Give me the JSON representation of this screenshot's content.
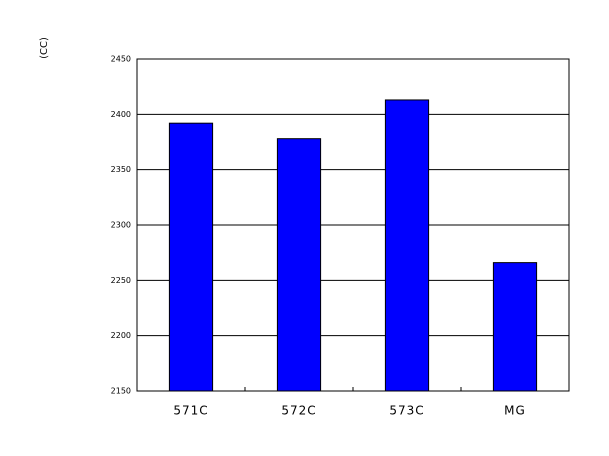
{
  "chart_data": {
    "type": "bar",
    "y_label": "(CC)",
    "categories": [
      "571C",
      "572C",
      "573C",
      "MG"
    ],
    "values": [
      2392,
      2378,
      2413,
      2266
    ],
    "color": "#0000ff",
    "ylim": [
      2150,
      2450
    ],
    "yticks": [
      2150,
      2200,
      2250,
      2300,
      2350,
      2400,
      2450
    ],
    "grid": true
  }
}
